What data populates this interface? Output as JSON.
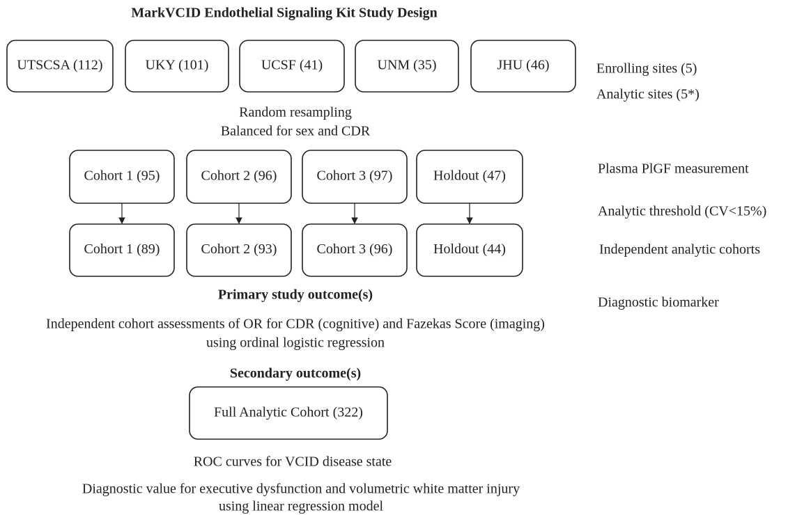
{
  "title": "MarkVCID Endothelial Signaling Kit Study Design",
  "sites": [
    "UTSCSA (112)",
    "UKY (101)",
    "UCSF (41)",
    "UNM (35)",
    "JHU (46)"
  ],
  "side_labels": [
    "Enrolling sites (5)",
    "Analytic sites (5*)",
    "Plasma PlGF measurement",
    "Analytic threshold (CV<15%)",
    "Independent analytic cohorts",
    "Diagnostic biomarker"
  ],
  "resampling": [
    "Random resampling",
    "Balanced for sex and CDR"
  ],
  "cohorts_initial": [
    "Cohort 1 (95)",
    "Cohort 2 (96)",
    "Cohort 3 (97)",
    "Holdout (47)"
  ],
  "cohorts_analytic": [
    "Cohort 1 (89)",
    "Cohort 2 (93)",
    "Cohort 3 (96)",
    "Holdout (44)"
  ],
  "primary": {
    "heading": "Primary study outcome(s)",
    "lines": [
      "Independent cohort assessments of OR for CDR (cognitive) and Fazekas Score (imaging)",
      "using ordinal logistic regression"
    ]
  },
  "secondary": {
    "heading": "Secondary outcome(s)",
    "box": "Full Analytic Cohort (322)",
    "lines": [
      "ROC curves for VCID disease state",
      "Diagnostic value for executive dysfunction and volumetric white matter injury",
      "using linear regression model"
    ]
  }
}
